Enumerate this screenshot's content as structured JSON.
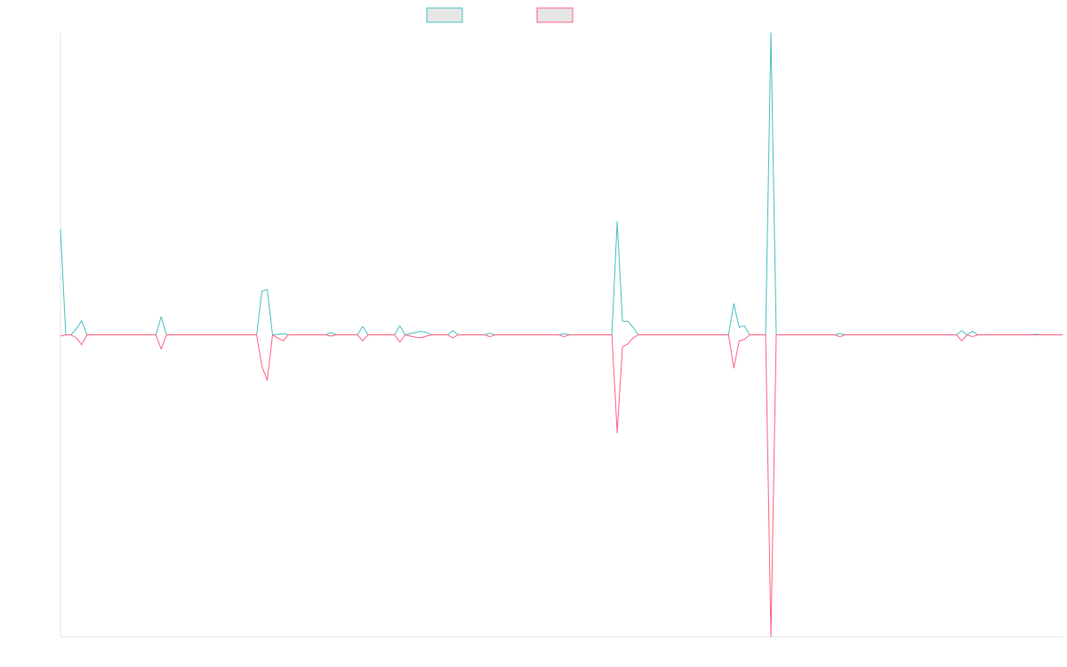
{
  "chart_data": {
    "type": "line",
    "title": "",
    "xlabel": "",
    "ylabel": "",
    "legend_position": "top-center",
    "grid": false,
    "ylim": [
      -1,
      1
    ],
    "x_count": 190,
    "series": [
      {
        "color": "#4BC0C0",
        "legend_swatch_fill": "#E6E6E6",
        "points": [
          [
            0,
            0.35
          ],
          [
            1,
            0.0
          ],
          [
            2,
            0.0
          ],
          [
            3,
            0.02
          ],
          [
            4,
            0.047
          ],
          [
            5,
            0.0
          ],
          [
            18,
            0.0
          ],
          [
            19,
            0.06
          ],
          [
            20,
            0.0
          ],
          [
            37,
            0.0
          ],
          [
            38,
            0.145
          ],
          [
            39,
            0.15
          ],
          [
            40,
            0.0
          ],
          [
            42,
            0.004
          ],
          [
            43,
            0.0
          ],
          [
            50,
            0.0
          ],
          [
            51,
            0.008
          ],
          [
            52,
            0.0
          ],
          [
            56,
            0.0
          ],
          [
            57,
            0.028
          ],
          [
            58,
            0.0
          ],
          [
            63,
            0.0
          ],
          [
            64,
            0.03
          ],
          [
            65,
            0.0
          ],
          [
            67,
            0.008
          ],
          [
            68,
            0.012
          ],
          [
            69,
            0.008
          ],
          [
            70,
            0.0
          ],
          [
            73,
            0.0
          ],
          [
            74,
            0.014
          ],
          [
            75,
            0.0
          ],
          [
            80,
            0.0
          ],
          [
            81,
            0.005
          ],
          [
            82,
            0.0
          ],
          [
            94,
            0.0
          ],
          [
            95,
            0.004
          ],
          [
            96,
            0.0
          ],
          [
            104,
            0.0
          ],
          [
            105,
            0.375
          ],
          [
            106,
            0.045
          ],
          [
            107,
            0.045
          ],
          [
            108,
            0.025
          ],
          [
            109,
            0.0
          ],
          [
            126,
            0.0
          ],
          [
            127,
            0.103
          ],
          [
            128,
            0.025
          ],
          [
            129,
            0.03
          ],
          [
            130,
            0.0
          ],
          [
            133,
            0.0
          ],
          [
            134,
            1.0
          ],
          [
            135,
            0.0
          ],
          [
            146,
            0.0
          ],
          [
            147,
            0.004
          ],
          [
            148,
            0.0
          ],
          [
            169,
            0.0
          ],
          [
            170,
            0.014
          ],
          [
            171,
            0.0
          ],
          [
            172,
            0.012
          ],
          [
            173,
            0.0
          ],
          [
            183,
            0.0
          ],
          [
            184,
            0.002
          ],
          [
            185,
            0.0
          ],
          [
            189,
            0.0
          ]
        ]
      },
      {
        "color": "#FF6384",
        "legend_swatch_fill": "#E6E6E6",
        "points": [
          [
            0,
            -0.004
          ],
          [
            1,
            0.0
          ],
          [
            2,
            0.0
          ],
          [
            3,
            -0.01
          ],
          [
            4,
            -0.033
          ],
          [
            5,
            0.0
          ],
          [
            18,
            0.0
          ],
          [
            19,
            -0.047
          ],
          [
            20,
            0.0
          ],
          [
            37,
            0.0
          ],
          [
            38,
            -0.105
          ],
          [
            39,
            -0.15
          ],
          [
            40,
            0.0
          ],
          [
            42,
            -0.02
          ],
          [
            43,
            0.0
          ],
          [
            50,
            0.0
          ],
          [
            51,
            -0.004
          ],
          [
            52,
            0.0
          ],
          [
            56,
            0.0
          ],
          [
            57,
            -0.02
          ],
          [
            58,
            0.0
          ],
          [
            63,
            0.0
          ],
          [
            64,
            -0.024
          ],
          [
            65,
            0.0
          ],
          [
            67,
            -0.008
          ],
          [
            68,
            -0.01
          ],
          [
            69,
            -0.004
          ],
          [
            70,
            0.0
          ],
          [
            73,
            0.0
          ],
          [
            74,
            -0.01
          ],
          [
            75,
            0.0
          ],
          [
            80,
            0.0
          ],
          [
            81,
            -0.006
          ],
          [
            82,
            0.0
          ],
          [
            94,
            0.0
          ],
          [
            95,
            -0.006
          ],
          [
            96,
            0.0
          ],
          [
            104,
            0.0
          ],
          [
            105,
            -0.325
          ],
          [
            106,
            -0.04
          ],
          [
            107,
            -0.03
          ],
          [
            108,
            -0.01
          ],
          [
            109,
            0.0
          ],
          [
            126,
            0.0
          ],
          [
            127,
            -0.11
          ],
          [
            128,
            -0.02
          ],
          [
            129,
            -0.015
          ],
          [
            130,
            0.0
          ],
          [
            133,
            0.0
          ],
          [
            134,
            -1.0
          ],
          [
            135,
            0.0
          ],
          [
            146,
            0.0
          ],
          [
            147,
            -0.006
          ],
          [
            148,
            0.0
          ],
          [
            169,
            0.0
          ],
          [
            170,
            -0.02
          ],
          [
            171,
            0.0
          ],
          [
            172,
            -0.006
          ],
          [
            173,
            0.0
          ],
          [
            189,
            0.0
          ]
        ]
      }
    ]
  }
}
